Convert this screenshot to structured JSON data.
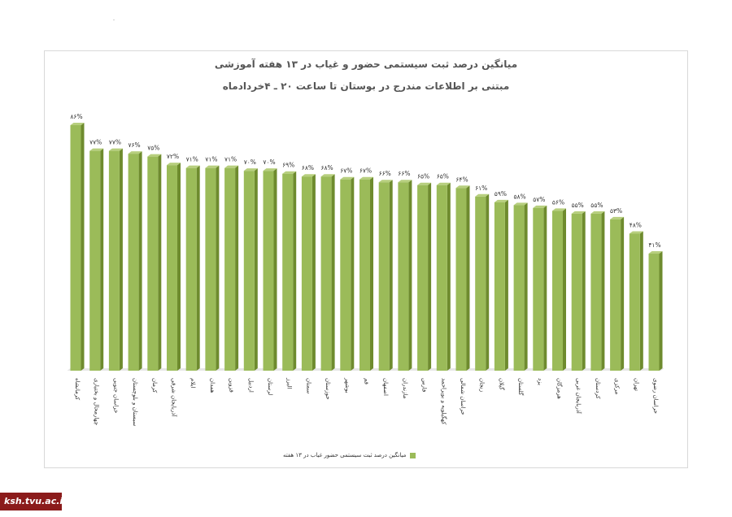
{
  "colors": {
    "bar": "#9bbb59",
    "bar_side": "#6e8b2e",
    "bar_top": "#b7cf7e",
    "footer_bg": "#8b1b1b"
  },
  "footer": {
    "label": "ksh.tvu.ac.ir"
  },
  "chart_data": {
    "type": "bar",
    "title": "میانگین درصد ثبت سیستمی حضور و غیاب در ۱۳ هفته آموزشی",
    "subtitle": "مبتنی بر اطلاعات مندرج در بوستان تا ساعت ۲۰ ـ ۴خردادماه",
    "xlabel": "",
    "ylabel": "",
    "ylim": [
      0,
      86
    ],
    "grid": false,
    "legend_placement": "bottom",
    "categories": [
      "کرمانشاه",
      "چهارمحال و بختیاری",
      "خراسان جنوبی",
      "سیستان و بلوچستان",
      "کرمان",
      "آذربایجان شرقی",
      "ایلام",
      "همدان",
      "قزوین",
      "اردبیل",
      "لرستان",
      "البرز",
      "سمنان",
      "خوزستان",
      "بوشهر",
      "قم",
      "اصفهان",
      "مازندران",
      "فارس",
      "کهگیلویه و بویراحمد",
      "خراسان شمالی",
      "زنجان",
      "گیلان",
      "گلستان",
      "یزد",
      "هرمزگان",
      "آذربایجان غربی",
      "کردستان",
      "مرکزی",
      "تهران",
      "خراسان رضوی"
    ],
    "values": [
      86,
      77,
      77,
      76,
      75,
      72,
      71,
      71,
      71,
      70,
      70,
      69,
      68,
      68,
      67,
      67,
      66,
      66,
      65,
      65,
      64,
      61,
      59,
      58,
      57,
      56,
      55,
      55,
      53,
      48,
      41
    ],
    "data_labels": [
      "۸۶%",
      "۷۷%",
      "۷۷%",
      "۷۶%",
      "۷۵%",
      "۷۲%",
      "۷۱%",
      "۷۱%",
      "۷۱%",
      "۷۰%",
      "۷۰%",
      "۶۹%",
      "۶۸%",
      "۶۸%",
      "۶۷%",
      "۶۷%",
      "۶۶%",
      "۶۶%",
      "۶۵%",
      "۶۵%",
      "۶۴%",
      "۶۱%",
      "۵۹%",
      "۵۸%",
      "۵۷%",
      "۵۶%",
      "۵۵%",
      "۵۵%",
      "۵۳%",
      "۴۸%",
      "۴۱%"
    ],
    "series": [
      {
        "name": "میانگین درصد ثبت سیستمی حضور غیاب در ۱۳ هفته"
      }
    ]
  }
}
